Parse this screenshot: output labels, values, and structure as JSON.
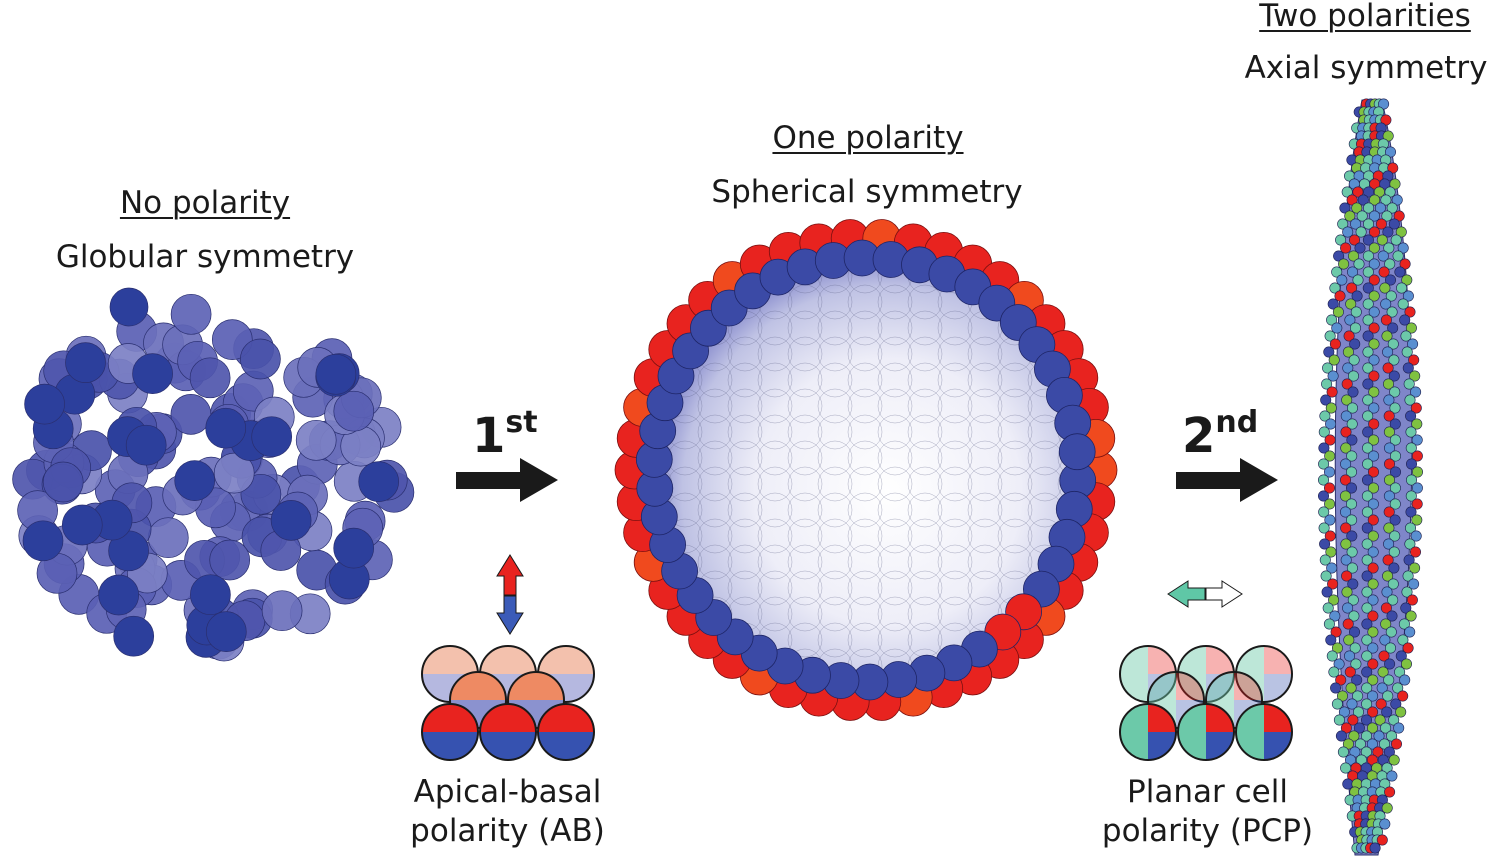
{
  "stages": [
    {
      "title": "No polarity",
      "subtitle": "Globular symmetry"
    },
    {
      "title": "One polarity",
      "subtitle": "Spherical symmetry"
    },
    {
      "title": "Two polarities",
      "subtitle": "Axial symmetry"
    }
  ],
  "steps": [
    {
      "number": "1",
      "suffix": "st"
    },
    {
      "number": "2",
      "suffix": "nd"
    }
  ],
  "polarity_types": [
    {
      "line1": "Apical-basal",
      "line2": "polarity (AB)"
    },
    {
      "line1": "Planar cell",
      "line2": "polarity (PCP)"
    }
  ],
  "colors": {
    "cell_blue": "#3b4aa6",
    "cell_dark_blue": "#2c3f9c",
    "apical_red": "#e8231f",
    "pcp_teal": "#6cc9a9",
    "pcp_green": "#7fc241",
    "lumen_lavender": "#c9cbe8",
    "arrow_black": "#1a1a1a"
  }
}
